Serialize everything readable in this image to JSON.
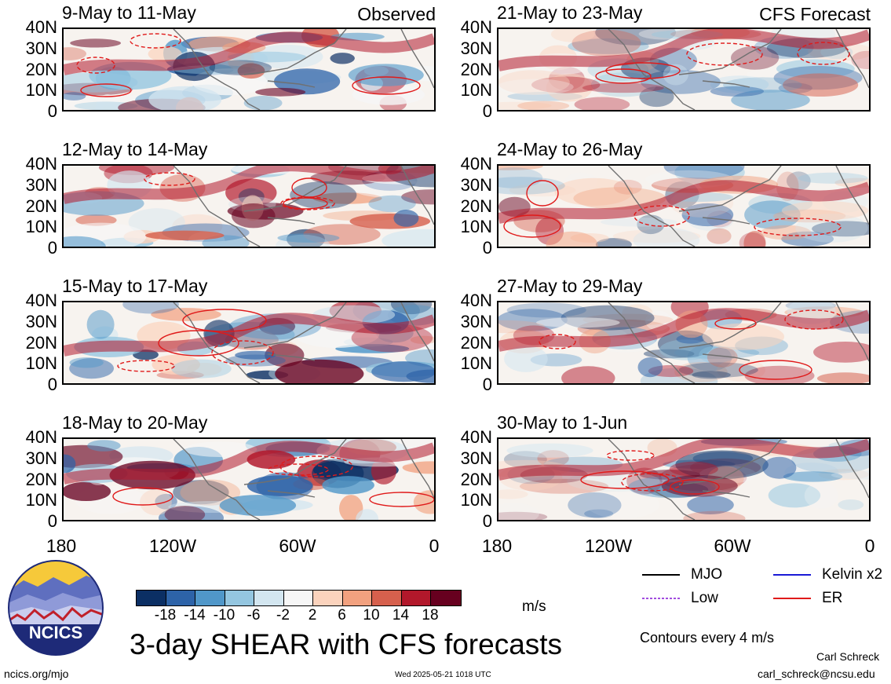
{
  "colors": {
    "red_contour": "#e01a1a",
    "land": "#707070",
    "cbar": [
      "#0b2f64",
      "#2d63a8",
      "#5097c9",
      "#94c6e0",
      "#d3e6f0",
      "#f6f6f6",
      "#fbd3bd",
      "#f2a17f",
      "#d6604d",
      "#b2182b",
      "#67001f"
    ]
  },
  "panels": [
    {
      "title": "9-May to 11-May",
      "tag": "Observed"
    },
    {
      "title": "21-May to 23-May",
      "tag": "CFS Forecast"
    },
    {
      "title": "12-May to 14-May",
      "tag": ""
    },
    {
      "title": "24-May to 26-May",
      "tag": ""
    },
    {
      "title": "15-May to 17-May",
      "tag": ""
    },
    {
      "title": "27-May to 29-May",
      "tag": ""
    },
    {
      "title": "18-May to 20-May",
      "tag": ""
    },
    {
      "title": "30-May to 1-Jun",
      "tag": ""
    }
  ],
  "y_ticks": [
    "40N",
    "30N",
    "20N",
    "10N",
    "0"
  ],
  "x_ticks": [
    "180",
    "120W",
    "60W",
    "0"
  ],
  "colorbar": {
    "labels": [
      "-18",
      "-14",
      "-10",
      "-6",
      "-2",
      "2",
      "6",
      "10",
      "14",
      "18"
    ],
    "unit": "m/s"
  },
  "legend": {
    "items": [
      {
        "label": "MJO",
        "color": "#000000",
        "icon": "solid-line"
      },
      {
        "label": "Kelvin x2",
        "color": "#1a1ad6",
        "icon": "solid-line"
      },
      {
        "label": "Low",
        "color": "#a24de0",
        "icon": "dotted-line"
      },
      {
        "label": "ER",
        "color": "#e01a1a",
        "icon": "solid-line"
      }
    ],
    "note": "Contours every 4 m/s"
  },
  "logo": {
    "text": "NCICS",
    "icon": "ncics-logo-icon"
  },
  "title": "3-day SHEAR with CFS forecasts",
  "footer": {
    "url": "ncics.org/mjo",
    "timestamp": "Wed 2025-05-21 1018 UTC",
    "author": "Carl Schreck",
    "email": "carl_schreck@ncsu.edu"
  }
}
